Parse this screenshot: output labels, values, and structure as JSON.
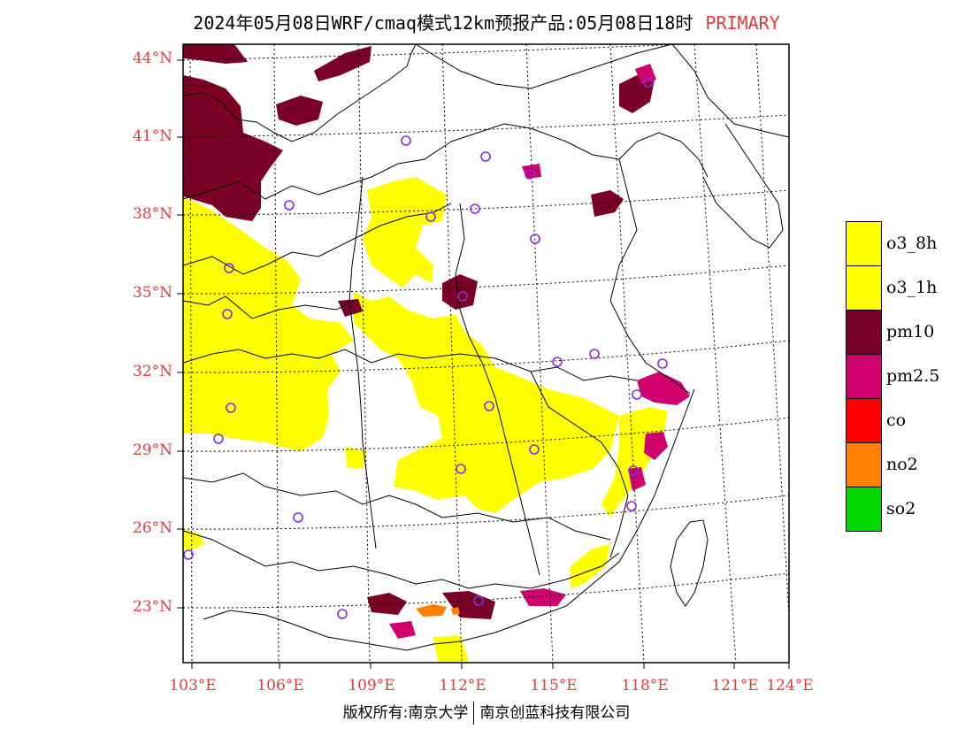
{
  "title": {
    "main": "2024年05月08日WRF/cmaq模式12km预报产品:05月08日18时",
    "tag": "PRIMARY"
  },
  "colors": {
    "label_red": "#e8393b",
    "o3": "#ffff00",
    "pm10": "#7a0028",
    "pm25": "#d0006f",
    "co": "#ff0000",
    "no2": "#ff8000",
    "so2": "#00d800",
    "station": "#8a2be2"
  },
  "axes": {
    "lat_labels": [
      "44°N",
      "41°N",
      "38°N",
      "35°N",
      "32°N",
      "29°N",
      "26°N",
      "23°N"
    ],
    "lon_labels": [
      "103°E",
      "106°E",
      "109°E",
      "112°E",
      "115°E",
      "118°E",
      "121°E",
      "124°E"
    ]
  },
  "legend": [
    {
      "label": "o3_8h",
      "color": "#ffff00"
    },
    {
      "label": "o3_1h",
      "color": "#ffff00"
    },
    {
      "label": "pm10",
      "color": "#7a0028"
    },
    {
      "label": "pm2.5",
      "color": "#d0006f"
    },
    {
      "label": "co",
      "color": "#ff0000"
    },
    {
      "label": "no2",
      "color": "#ff8000"
    },
    {
      "label": "so2",
      "color": "#00d800"
    }
  ],
  "footer": {
    "left": "版权所有:南京大学",
    "right": "南京创蓝科技有限公司"
  }
}
